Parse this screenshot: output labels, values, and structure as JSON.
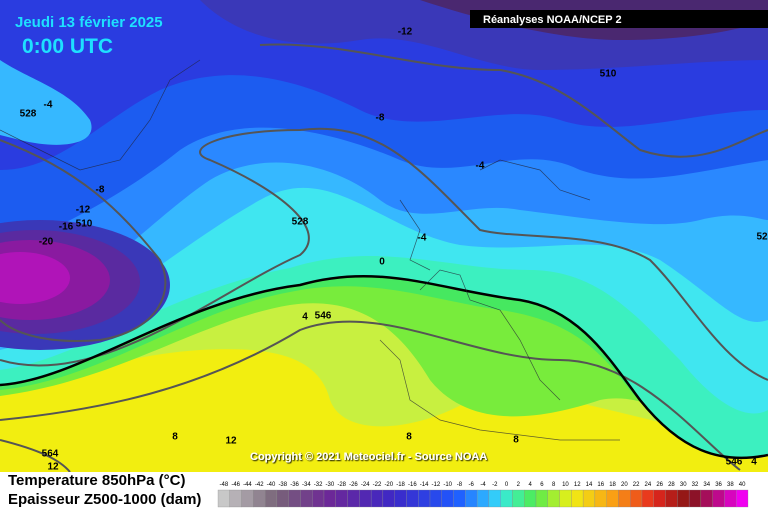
{
  "header": {
    "date": "Jeudi 13 février 2025",
    "time": "0:00 UTC",
    "source": "Réanalyses NOAA/NCEP 2"
  },
  "map": {
    "contour_labels": [
      -12,
      -4,
      528,
      -8,
      -4,
      -8,
      -12,
      -16,
      510,
      -20,
      528,
      -4,
      0,
      4,
      546,
      510,
      52,
      8,
      12,
      8,
      8,
      564,
      12,
      546,
      4
    ]
  },
  "copyright": "Copyright © 2021 Meteociel.fr - Source NOAA",
  "legend": {
    "title_temperature": "Temperature 850hPa (°C)",
    "title_thickness": "Epaisseur Z500-1000 (dam)",
    "scale": [
      -48,
      -46,
      -44,
      -42,
      -40,
      -38,
      -36,
      -34,
      -32,
      -30,
      -28,
      -26,
      -24,
      -22,
      -20,
      -18,
      -16,
      -14,
      -12,
      -10,
      -8,
      -6,
      -4,
      -2,
      0,
      2,
      4,
      6,
      8,
      10,
      12,
      14,
      16,
      18,
      20,
      22,
      24,
      26,
      28,
      30,
      32,
      34,
      36,
      38,
      40
    ]
  }
}
